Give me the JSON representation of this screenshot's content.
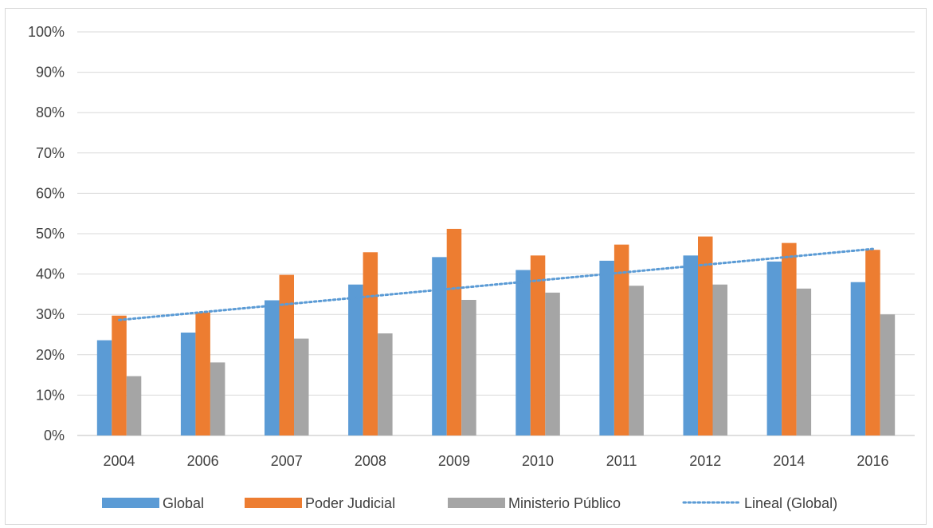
{
  "chart_data": {
    "type": "bar",
    "title": "",
    "xlabel": "",
    "ylabel": "",
    "categories": [
      "2004",
      "2006",
      "2007",
      "2008",
      "2009",
      "2010",
      "2011",
      "2012",
      "2014",
      "2016"
    ],
    "y_ticks": [
      "0%",
      "10%",
      "20%",
      "30%",
      "40%",
      "50%",
      "60%",
      "70%",
      "80%",
      "90%",
      "100%"
    ],
    "ylim": [
      0,
      100
    ],
    "y_unit": "%",
    "grid": true,
    "legend_position": "bottom",
    "series": [
      {
        "name": "Global",
        "color": "#5b9bd5",
        "values": [
          23.6,
          25.5,
          33.5,
          37.4,
          44.2,
          41.0,
          43.3,
          44.6,
          43.1,
          38.0
        ]
      },
      {
        "name": "Poder Judicial",
        "color": "#ed7d31",
        "values": [
          29.7,
          30.5,
          39.8,
          45.4,
          51.2,
          44.6,
          47.3,
          49.3,
          47.7,
          46.0
        ]
      },
      {
        "name": "Ministerio Público",
        "color": "#a5a5a5",
        "values": [
          14.7,
          18.1,
          24.0,
          25.3,
          33.6,
          35.4,
          37.1,
          37.4,
          36.4,
          30.0
        ]
      }
    ],
    "trendline": {
      "name": "Lineal (Global)",
      "of_series": "Global",
      "type": "linear",
      "color": "#5b9bd5",
      "style": "dotted"
    }
  }
}
